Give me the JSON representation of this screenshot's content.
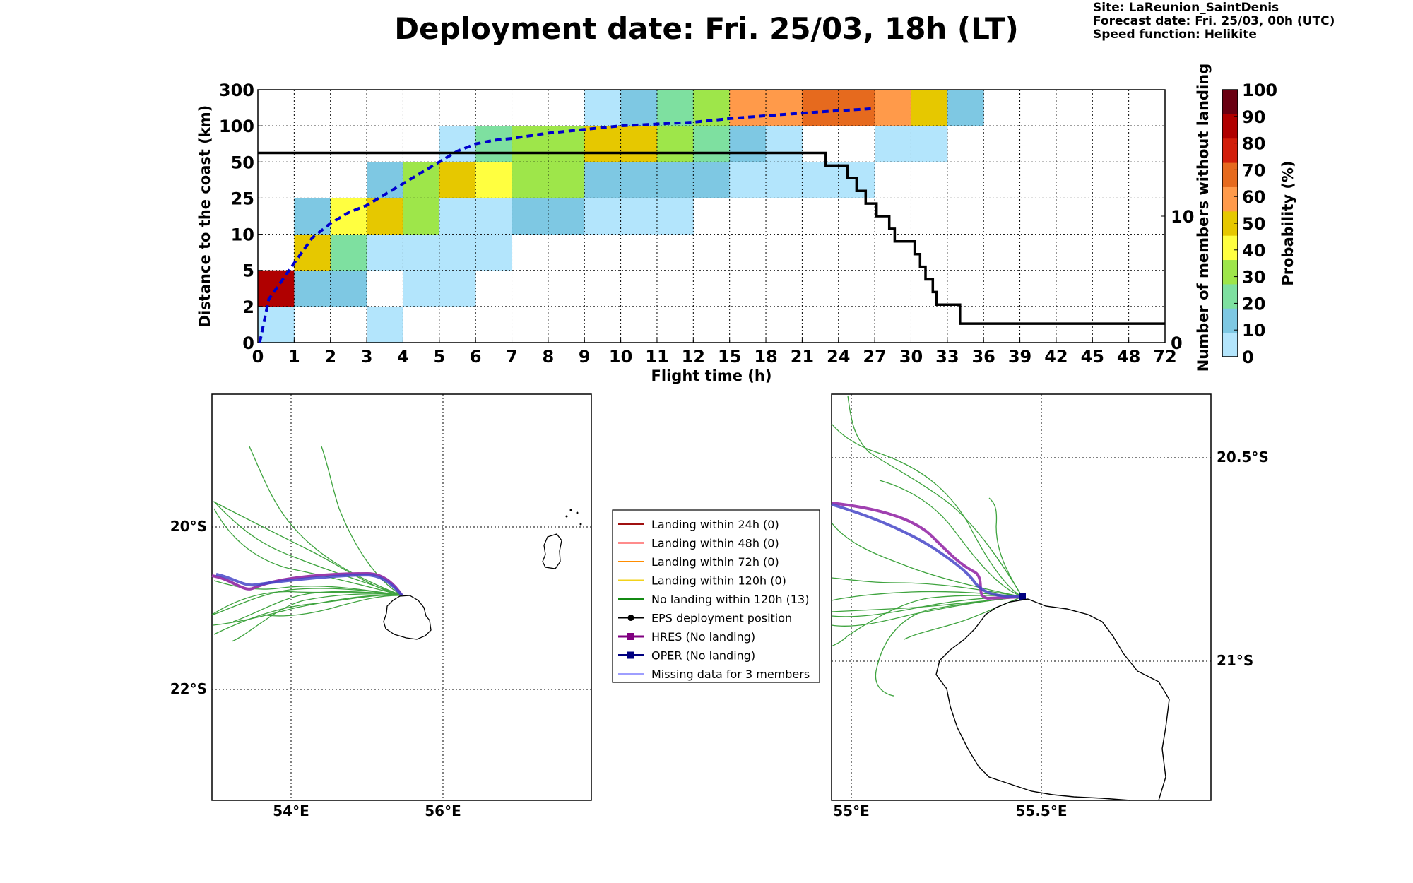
{
  "header": {
    "title": "Deployment date: Fri. 25/03, 18h (LT)",
    "site": "Site: LaReunion_SaintDenis",
    "forecast": "Forecast date: Fri. 25/03, 00h (UTC)",
    "speed": "Speed function: Helikite"
  },
  "chart_data": [
    {
      "type": "heatmap",
      "xlabel": "Flight time (h)",
      "ylabel": "Distance to the coast (km)",
      "y2label": "Number of members without landing",
      "colorbar_label": "Probability (%)",
      "x_ticks": [
        "0",
        "1",
        "2",
        "3",
        "4",
        "5",
        "6",
        "7",
        "8",
        "9",
        "10",
        "11",
        "12",
        "15",
        "18",
        "21",
        "24",
        "27",
        "30",
        "33",
        "36",
        "39",
        "42",
        "45",
        "48",
        "72"
      ],
      "y_ticks": [
        "0",
        "2",
        "5",
        "10",
        "25",
        "50",
        "100",
        "300"
      ],
      "y2_ticks": [
        "0",
        "10"
      ],
      "y2_range": [
        0,
        20
      ],
      "grid": true,
      "colorbar_ticks": [
        "0",
        "10",
        "20",
        "30",
        "40",
        "50",
        "60",
        "70",
        "80",
        "90",
        "100"
      ],
      "colorbar_colors": [
        "#b3e5fc",
        "#7ec8e3",
        "#7ee0a0",
        "#9ee64a",
        "#ffff40",
        "#e6c800",
        "#ff9a4a",
        "#e66a1e",
        "#d21e0a",
        "#b00000",
        "#6a0012"
      ],
      "note": "cells: [x_bin_index, y_bin_index, probability_percent]",
      "cells": [
        [
          0,
          0,
          0
        ],
        [
          3,
          0,
          5
        ],
        [
          0,
          1,
          90
        ],
        [
          1,
          1,
          15
        ],
        [
          2,
          1,
          15
        ],
        [
          4,
          1,
          5
        ],
        [
          5,
          1,
          5
        ],
        [
          1,
          2,
          50
        ],
        [
          2,
          2,
          25
        ],
        [
          3,
          2,
          5
        ],
        [
          4,
          2,
          5
        ],
        [
          5,
          2,
          5
        ],
        [
          6,
          2,
          5
        ],
        [
          1,
          3,
          15
        ],
        [
          2,
          3,
          45
        ],
        [
          3,
          3,
          55
        ],
        [
          4,
          3,
          35
        ],
        [
          5,
          3,
          5
        ],
        [
          6,
          3,
          5
        ],
        [
          7,
          3,
          15
        ],
        [
          8,
          3,
          15
        ],
        [
          9,
          3,
          5
        ],
        [
          10,
          3,
          5
        ],
        [
          11,
          3,
          5
        ],
        [
          3,
          4,
          15
        ],
        [
          4,
          4,
          35
        ],
        [
          5,
          4,
          55
        ],
        [
          6,
          4,
          45
        ],
        [
          7,
          4,
          35
        ],
        [
          8,
          4,
          35
        ],
        [
          9,
          4,
          15
        ],
        [
          10,
          4,
          15
        ],
        [
          11,
          4,
          15
        ],
        [
          12,
          4,
          15
        ],
        [
          13,
          4,
          5
        ],
        [
          14,
          4,
          5
        ],
        [
          15,
          4,
          5
        ],
        [
          16,
          4,
          5
        ],
        [
          5,
          5,
          5
        ],
        [
          6,
          5,
          25
        ],
        [
          7,
          5,
          35
        ],
        [
          8,
          5,
          35
        ],
        [
          9,
          5,
          55
        ],
        [
          10,
          5,
          55
        ],
        [
          11,
          5,
          35
        ],
        [
          12,
          5,
          25
        ],
        [
          13,
          5,
          15
        ],
        [
          14,
          5,
          5
        ],
        [
          17,
          5,
          5
        ],
        [
          18,
          5,
          5
        ],
        [
          9,
          6,
          5
        ],
        [
          10,
          6,
          15
        ],
        [
          11,
          6,
          25
        ],
        [
          12,
          6,
          35
        ],
        [
          13,
          6,
          65
        ],
        [
          14,
          6,
          65
        ],
        [
          15,
          6,
          75
        ],
        [
          16,
          6,
          75
        ],
        [
          17,
          6,
          65
        ],
        [
          18,
          6,
          55
        ],
        [
          19,
          6,
          15
        ]
      ],
      "series": [
        {
          "name": "Median distance to the coast",
          "style": "dashed",
          "color": "#0000cc",
          "x": [
            0.05,
            0.3,
            1.0,
            1.5,
            2.0,
            2.5,
            3.0,
            3.5,
            4.0,
            4.5,
            5.0,
            5.5,
            6.0,
            6.5,
            7.0,
            8.0,
            9.0,
            10.0,
            11.0,
            12.0,
            13.0,
            14.0,
            15.0,
            16.0,
            17.0
          ],
          "y": [
            0.0,
            1.2,
            2.2,
            2.9,
            3.3,
            3.6,
            3.8,
            4.1,
            4.4,
            4.7,
            5.0,
            5.3,
            5.5,
            5.6,
            5.65,
            5.8,
            5.9,
            6.0,
            6.05,
            6.1,
            6.2,
            6.28,
            6.35,
            6.42,
            6.48
          ]
        },
        {
          "name": "Number of members without landing",
          "style": "step",
          "color": "#000000",
          "x": [
            0,
            15.65,
            15.65,
            16.25,
            16.25,
            16.5,
            16.5,
            16.75,
            16.75,
            17.05,
            17.05,
            17.4,
            17.4,
            17.55,
            17.55,
            18.1,
            18.1,
            18.25,
            18.25,
            18.4,
            18.4,
            18.6,
            18.6,
            18.7,
            18.7,
            19.35,
            19.35,
            25
          ],
          "y": [
            15,
            15,
            14,
            14,
            13,
            13,
            12,
            12,
            11,
            11,
            10,
            10,
            9,
            9,
            8,
            8,
            7,
            7,
            6,
            6,
            5,
            5,
            4,
            4,
            3,
            3,
            1.5,
            1.5
          ]
        }
      ]
    }
  ],
  "maps": {
    "left": {
      "lon_labels": [
        "54°E",
        "56°E"
      ],
      "lat_labels": [
        "20°S",
        "22°S"
      ]
    },
    "right": {
      "lon_labels": [
        "55°E",
        "55.5°E"
      ],
      "lat_labels": [
        "20.5°S",
        "21°S"
      ]
    }
  },
  "legend": {
    "items": [
      {
        "label": "Landing within 24h (0)",
        "color": "#a01010",
        "style": "line"
      },
      {
        "label": "Landing within 48h (0)",
        "color": "#ff1a1a",
        "style": "line"
      },
      {
        "label": "Landing within 72h (0)",
        "color": "#ff8c00",
        "style": "line"
      },
      {
        "label": "Landing within 120h (0)",
        "color": "#f2d21a",
        "style": "line"
      },
      {
        "label": "No landing within 120h (13)",
        "color": "#138a13",
        "style": "line"
      },
      {
        "label": "EPS deployment position",
        "color": "#000000",
        "style": "dot"
      },
      {
        "label": "HRES (No landing)",
        "color": "#800080",
        "style": "square"
      },
      {
        "label": "OPER (No landing)",
        "color": "#000080",
        "style": "square"
      },
      {
        "label": "Missing data for 3 members",
        "color": "#6464ff",
        "style": "thin"
      }
    ]
  }
}
